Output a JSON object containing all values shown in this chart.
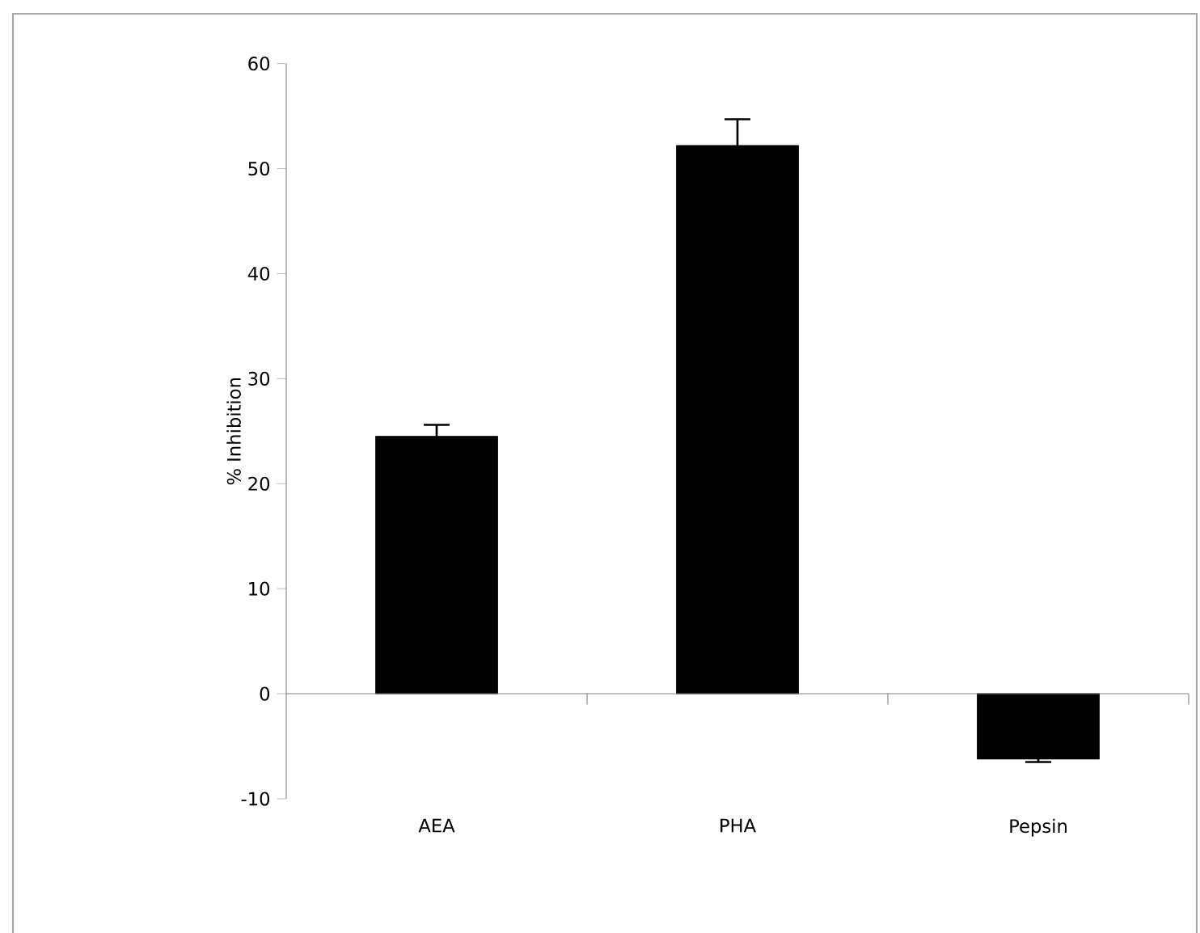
{
  "chart_data": {
    "type": "bar",
    "categories": [
      "AEA",
      "PHA",
      "Pepsin"
    ],
    "values": [
      24.5,
      52.2,
      -6.2
    ],
    "errors": [
      1.1,
      2.5,
      0.3
    ],
    "color": "#000000",
    "ylabel": "% Inhibition",
    "ylim": [
      -10,
      60
    ],
    "yticks": [
      -10,
      0,
      10,
      20,
      30,
      40,
      50,
      60
    ]
  }
}
